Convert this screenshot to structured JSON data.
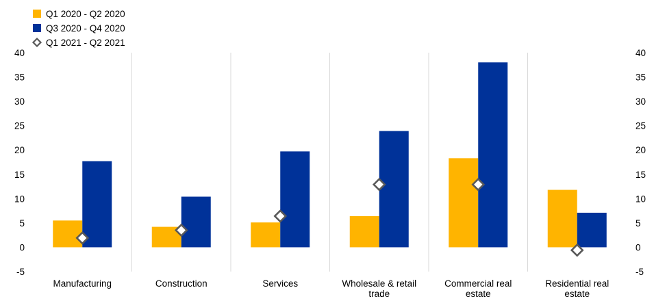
{
  "chart_data": {
    "type": "bar",
    "categories": [
      [
        "Manufacturing"
      ],
      [
        "Construction"
      ],
      [
        "Services"
      ],
      [
        "Wholesale & retail",
        "trade"
      ],
      [
        "Commercial real",
        "estate"
      ],
      [
        "Residential real",
        "estate"
      ]
    ],
    "series": [
      {
        "name": "Q1 2020 - Q2 2020",
        "kind": "bar",
        "color": "#FFB400",
        "values": [
          5.5,
          4.2,
          5.1,
          6.4,
          18.3,
          11.8
        ]
      },
      {
        "name": "Q3 2020 - Q4 2020",
        "kind": "bar",
        "color": "#003299",
        "values": [
          17.7,
          10.4,
          19.7,
          23.9,
          38.0,
          7.1
        ]
      },
      {
        "name": "Q1 2021 - Q2 2021",
        "kind": "marker",
        "marker": "diamond",
        "color": "#595959",
        "values": [
          1.9,
          3.5,
          6.4,
          12.9,
          12.9,
          -0.6
        ]
      }
    ],
    "ylim": [
      -5,
      40
    ],
    "yticks": [
      -5,
      0,
      5,
      10,
      15,
      20,
      25,
      30,
      35,
      40
    ],
    "y_axis_both_sides": true,
    "vertical_separators": true,
    "legend_position": "top-left",
    "title": "",
    "xlabel": "",
    "ylabel": ""
  }
}
